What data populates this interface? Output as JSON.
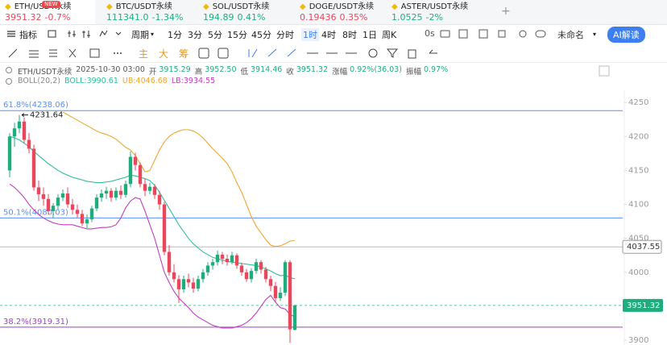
{
  "tabs": [
    {
      "symbol": "ETH/USDT永续",
      "price": "3951.32",
      "change": "-0.7%",
      "badge": "NEW",
      "color": "#e8485d"
    },
    {
      "symbol": "BTC/USDT永续",
      "price": "111341.0",
      "change": "-1.34%",
      "color": "#1fad7e"
    },
    {
      "symbol": "SOL/USDT永续",
      "price": "194.89",
      "change": "0.41%",
      "color": "#1fad7e"
    },
    {
      "symbol": "DOGE/USDT永续",
      "price": "0.19436",
      "change": "0.35%",
      "color": "#e8485d"
    },
    {
      "symbol": "ASTER/USDT永续",
      "price": "1.0525",
      "change": "-2%",
      "color": "#1fad7e"
    }
  ],
  "toolbar": {
    "indicator": "指标",
    "period": "周期",
    "intervals": [
      {
        "label": "1分"
      },
      {
        "label": "3分"
      },
      {
        "label": "5分"
      },
      {
        "label": "15分"
      },
      {
        "label": "45分"
      },
      {
        "label": "分时"
      },
      {
        "label": "1时",
        "active": true
      },
      {
        "label": "4时"
      },
      {
        "label": "8时"
      },
      {
        "label": "1日"
      },
      {
        "label": "周K"
      }
    ],
    "countdown": "0s",
    "layout_name": "未命名",
    "ai_button": "AI解读"
  },
  "drawing_tools": [
    "主",
    "大",
    "筹"
  ],
  "info": [
    {
      "text": "ETH/USDT永续"
    },
    {
      "text": "2025-10-30 03:00"
    },
    {
      "label": "开",
      "value": "3915.29"
    },
    {
      "label": "高",
      "value": "3952.50"
    },
    {
      "label": "低",
      "value": "3914.46"
    },
    {
      "label": "收",
      "value": "3951.32"
    },
    {
      "label": "涨幅",
      "value": "0.92%(36.03)"
    },
    {
      "label": "振幅",
      "value": "0.97%"
    }
  ],
  "boll": [
    {
      "text": "BOLL(20,2)",
      "color": "#888"
    },
    {
      "text": "BOLL:3990.61",
      "color": "#2fbf9a"
    },
    {
      "text": "UB:4046.68",
      "color": "#f0a630"
    },
    {
      "text": "LB:3934.55",
      "color": "#c03fc0"
    }
  ],
  "chart_data": {
    "type": "candlestick",
    "up_color": "#1fad7e",
    "down_color": "#e8485d",
    "open": [
      4150,
      4200,
      4212,
      4222,
      4195,
      4182,
      4125,
      4115,
      4108,
      4090,
      4098,
      4110,
      4116,
      4100,
      4092,
      4086,
      4072,
      4078,
      4094,
      4110,
      4116,
      4120,
      4110,
      4120,
      4114,
      4130,
      4170,
      4158,
      4130,
      4120,
      4126,
      4114,
      4100,
      4030,
      4000,
      3990,
      3975,
      3990,
      3985,
      3976,
      3990,
      4000,
      4010,
      4015,
      4026,
      4020,
      4015,
      4025,
      4010,
      4000,
      3990,
      4002,
      4015,
      4004,
      3990,
      3980,
      3962,
      3970,
      4015,
      3915.29
    ],
    "high": [
      4205,
      4220,
      4231.64,
      4228,
      4205,
      4188,
      4135,
      4125,
      4115,
      4102,
      4115,
      4122,
      4125,
      4108,
      4100,
      4092,
      4085,
      4098,
      4115,
      4122,
      4126,
      4124,
      4125,
      4128,
      4135,
      4178,
      4176,
      4162,
      4138,
      4132,
      4130,
      4120,
      4104,
      4040,
      4012,
      3996,
      3995,
      3998,
      3992,
      3995,
      4005,
      4015,
      4020,
      4032,
      4030,
      4026,
      4030,
      4028,
      4014,
      4005,
      4006,
      4020,
      4018,
      4008,
      3995,
      3986,
      3978,
      4018,
      4018,
      3952.5
    ],
    "low": [
      4140,
      4185,
      4205,
      4190,
      4175,
      4120,
      4105,
      4098,
      4085,
      4080,
      4092,
      4105,
      4095,
      4085,
      4080,
      4068,
      4065,
      4074,
      4090,
      4104,
      4108,
      4104,
      4106,
      4108,
      4110,
      4125,
      4150,
      4125,
      4112,
      4115,
      4108,
      4092,
      4025,
      3995,
      3985,
      3955,
      3970,
      3978,
      3970,
      3972,
      3985,
      3995,
      4004,
      4010,
      4012,
      4010,
      4012,
      4005,
      3995,
      3986,
      3985,
      3998,
      3998,
      3985,
      3972,
      3955,
      3958,
      3965,
      3896,
      3914.46
    ],
    "close": [
      4200,
      4212,
      4222,
      4195,
      4182,
      4125,
      4115,
      4108,
      4090,
      4098,
      4110,
      4116,
      4100,
      4092,
      4086,
      4072,
      4078,
      4094,
      4110,
      4116,
      4120,
      4110,
      4120,
      4114,
      4130,
      4170,
      4158,
      4130,
      4120,
      4126,
      4114,
      4100,
      4030,
      4000,
      3990,
      3975,
      3990,
      3985,
      3976,
      3990,
      4000,
      4010,
      4015,
      4026,
      4020,
      4015,
      4025,
      4010,
      4000,
      3990,
      4002,
      4015,
      4004,
      3990,
      3980,
      3962,
      3970,
      4015,
      3916,
      3951.32
    ],
    "series": [
      {
        "color": "#2fbf9a",
        "values": [
          4200,
          4198,
          4195,
          4190,
          4185,
          4178,
          4172,
          4166,
          4160,
          4155,
          4150,
          4146,
          4143,
          4140,
          4138,
          4136,
          4134,
          4133,
          4132,
          4132,
          4133,
          4134,
          4136,
          4138,
          4140,
          4143,
          4142,
          4140,
          4138,
          4135,
          4128,
          4118,
          4106,
          4094,
          4082,
          4070,
          4060,
          4050,
          4042,
          4036,
          4030,
          4026,
          4022,
          4020,
          4018,
          4016,
          4015,
          4014,
          4013,
          4012,
          4011,
          4010,
          4008,
          4005,
          4002,
          3998,
          3995,
          3996,
          3992,
          3990.61
        ]
      },
      {
        "color": "#f0a630",
        "values": [
          null,
          null,
          null,
          null,
          null,
          null,
          null,
          null,
          null,
          null,
          null,
          4236,
          4232,
          4228,
          4224,
          4220,
          4216,
          4212,
          4208,
          4205,
          4203,
          4200,
          4196,
          4190,
          4184,
          4180,
          4172,
          4160,
          4148,
          4150,
          4165,
          4180,
          4192,
          4200,
          4205,
          4208,
          4210,
          4210,
          4208,
          4204,
          4198,
          4190,
          4182,
          4175,
          4168,
          4160,
          4148,
          4132,
          4118,
          4100,
          4082,
          4068,
          4058,
          4048,
          4040,
          4038,
          4039,
          4042,
          4046,
          4046.68
        ]
      },
      {
        "color": "#c03fc0",
        "values": [
          4130,
          4125,
          4118,
          4110,
          4100,
          4092,
          4085,
          4080,
          4076,
          4073,
          4071,
          4070,
          4070,
          4070,
          4068,
          4066,
          4064,
          4064,
          4065,
          4066,
          4066,
          4067,
          4070,
          4080,
          4095,
          4105,
          4110,
          4108,
          4090,
          4070,
          4050,
          4025,
          4000,
          3985,
          3972,
          3962,
          3955,
          3948,
          3940,
          3934,
          3930,
          3926,
          3922,
          3920,
          3918,
          3918,
          3918,
          3920,
          3922,
          3926,
          3932,
          3940,
          3950,
          3960,
          3966,
          3956,
          3948,
          3946,
          3938,
          3934.55
        ]
      }
    ],
    "levels": [
      {
        "label": "61.8%(4238.06)",
        "value": 4238.06,
        "color": "#5b8ff9"
      },
      {
        "label": "50.1%(4080.03)",
        "value": 4080.03,
        "color": "#5b8ff9"
      },
      {
        "label": "38.2%(3919.31)",
        "value": 3919.31,
        "color": "#a23fc9"
      }
    ],
    "marked_price": {
      "value": 4037.55,
      "color": "#999"
    },
    "last_price": {
      "value": 3951.32,
      "color": "#1fad7e"
    },
    "high_marker": 4231.64,
    "ylim": [
      3893,
      4268
    ],
    "yticks": [
      4250,
      4200,
      4150,
      4100,
      4050,
      4000,
      3900
    ]
  }
}
